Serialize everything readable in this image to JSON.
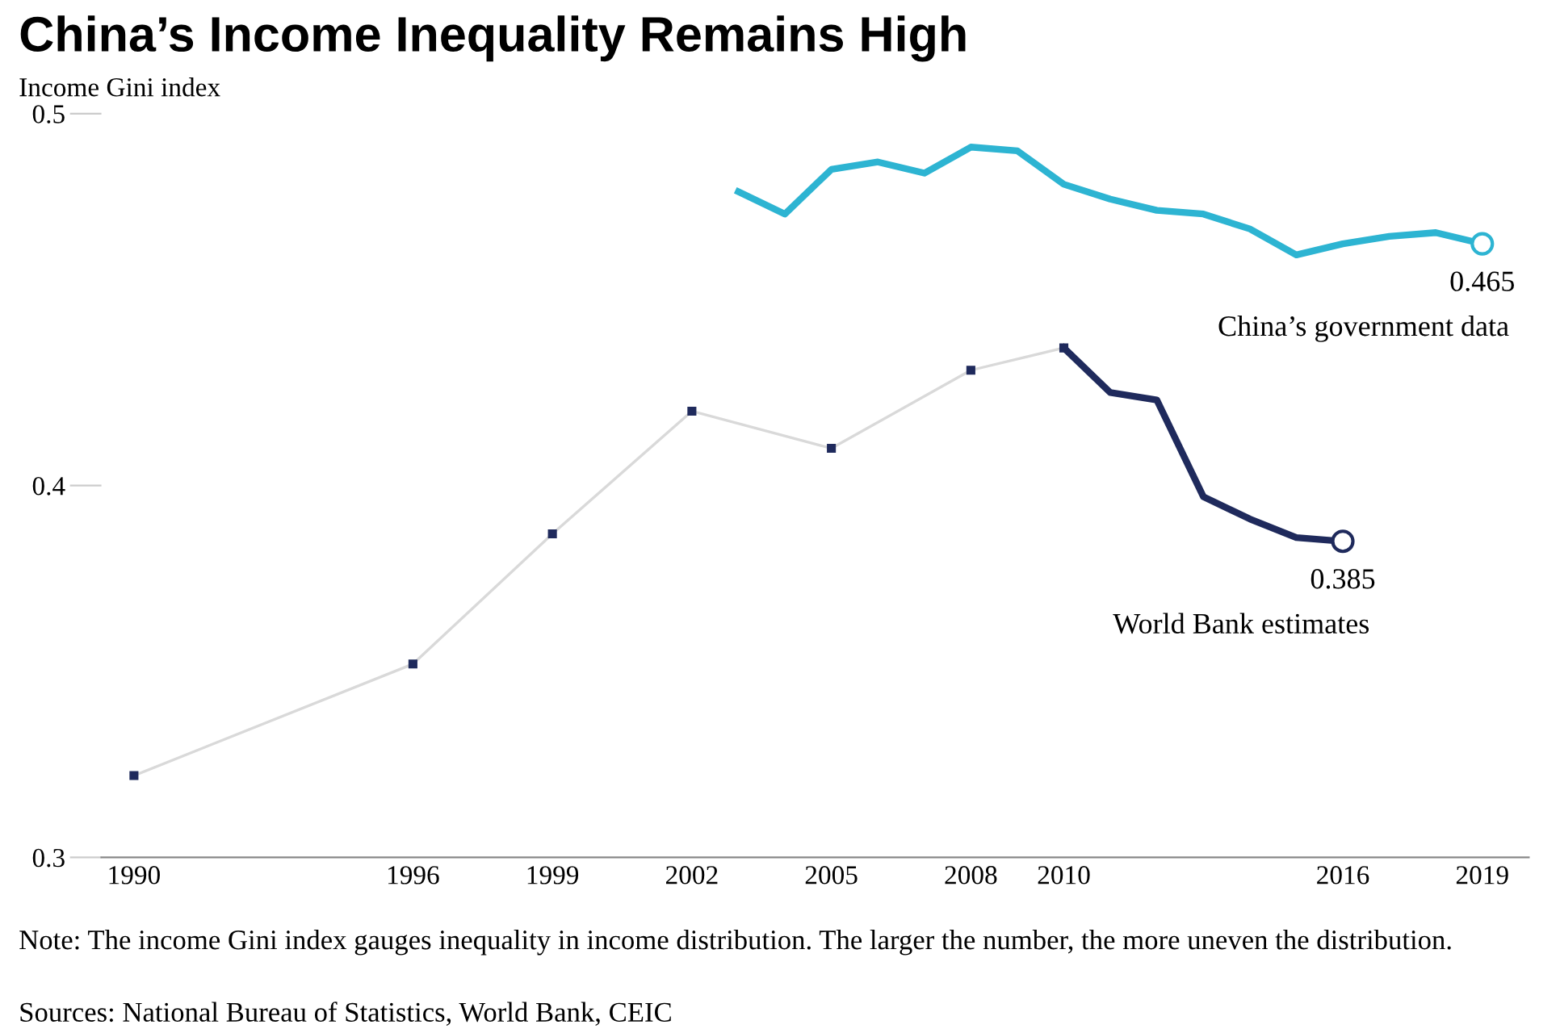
{
  "chart_data": {
    "type": "line",
    "title": "China’s Income Inequality Remains High",
    "ylabel": "Income Gini index",
    "xlim": [
      1989.3,
      2020
    ],
    "ylim": [
      0.3,
      0.5
    ],
    "xticks": [
      1990,
      1996,
      1999,
      2002,
      2005,
      2008,
      2010,
      2016,
      2019
    ],
    "yticks": [
      0.3,
      0.4,
      0.5
    ],
    "grid": false,
    "legend": false,
    "series": [
      {
        "color": "#d9d9d9",
        "marker": "square",
        "x": [
          1990,
          1996,
          1999,
          2002,
          2005,
          2008,
          2010
        ],
        "values": [
          0.322,
          0.352,
          0.387,
          0.42,
          0.41,
          0.431,
          0.437
        ]
      },
      {
        "name": "World Bank estimates",
        "color": "#1f2a5c",
        "x": [
          2010,
          2011,
          2012,
          2013,
          2014,
          2015,
          2016
        ],
        "values": [
          0.437,
          0.425,
          0.423,
          0.397,
          0.391,
          0.386,
          0.385
        ]
      },
      {
        "name": "China’s government data",
        "color": "#2db4d2",
        "x": [
          2003,
          2004,
          2005,
          2006,
          2007,
          2008,
          2009,
          2010,
          2011,
          2012,
          2013,
          2014,
          2015,
          2016,
          2017,
          2018,
          2019
        ],
        "values": [
          0.479,
          0.473,
          0.485,
          0.487,
          0.484,
          0.491,
          0.49,
          0.481,
          0.477,
          0.474,
          0.473,
          0.469,
          0.462,
          0.465,
          0.467,
          0.468,
          0.465
        ]
      }
    ],
    "annotations": [
      {
        "text": "0.465",
        "x": 2019,
        "y": 0.465
      },
      {
        "text": "0.385",
        "x": 2016,
        "y": 0.385
      },
      "Note: The income Gini index gauges inequality in income distribution. The larger the number, the more uneven the distribution.",
      "Sources: National Bureau of Statistics, World Bank, CEIC"
    ]
  }
}
